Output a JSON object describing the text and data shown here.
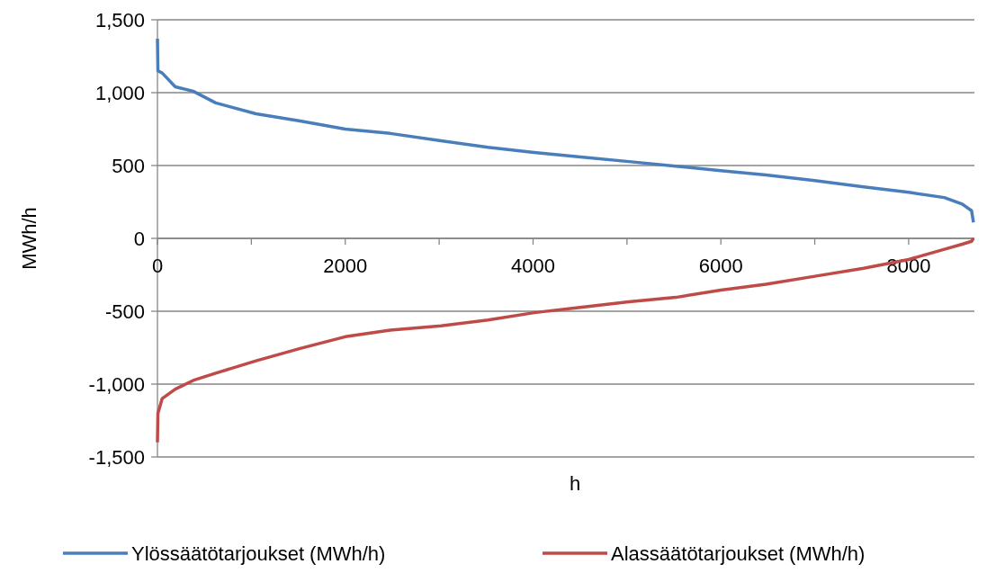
{
  "chart_data": {
    "type": "line",
    "xlabel": "h",
    "ylabel": "MWh/h",
    "xlim": [
      0,
      8700
    ],
    "ylim": [
      -1500,
      1500
    ],
    "xticks": [
      0,
      {
        "value": 1000,
        "label": null
      },
      2000,
      {
        "value": 3000,
        "label": null
      },
      4000,
      {
        "value": 5000,
        "label": null
      },
      6000,
      {
        "value": 7000,
        "label": null
      },
      8000
    ],
    "yticks": [
      {
        "value": -1500,
        "label": "-1,500"
      },
      {
        "value": -1000,
        "label": "-1,000"
      },
      -500,
      0,
      500,
      {
        "value": 1000,
        "label": "1,000"
      },
      {
        "value": 1500,
        "label": "1,500"
      }
    ],
    "grid": "y",
    "legend": "bottom",
    "marker": "none",
    "line_style": "solid",
    "x": [
      0,
      5,
      50,
      190,
      380,
      620,
      1050,
      1520,
      2000,
      2480,
      3020,
      3520,
      4010,
      4480,
      5020,
      5520,
      6000,
      6480,
      7000,
      7520,
      8000,
      8380,
      8570,
      8670,
      8690
    ],
    "series": [
      {
        "name": "Ylössäätötarjoukset (MWh/h)",
        "color": "#4a7ebb",
        "values": [
          1370,
          1150,
          1135,
          1040,
          1010,
          930,
          855,
          805,
          750,
          720,
          670,
          625,
          590,
          560,
          527,
          495,
          465,
          435,
          397,
          353,
          316,
          280,
          235,
          190,
          110
        ]
      },
      {
        "name": "Alassäätötarjoukset (MWh/h)",
        "color": "#be4b48",
        "values": [
          -1400,
          -1200,
          -1100,
          -1035,
          -975,
          -925,
          -840,
          -755,
          -675,
          -630,
          -600,
          -560,
          -510,
          -475,
          -435,
          -405,
          -355,
          -315,
          -260,
          -205,
          -145,
          -75,
          -40,
          -20,
          0
        ]
      }
    ]
  }
}
